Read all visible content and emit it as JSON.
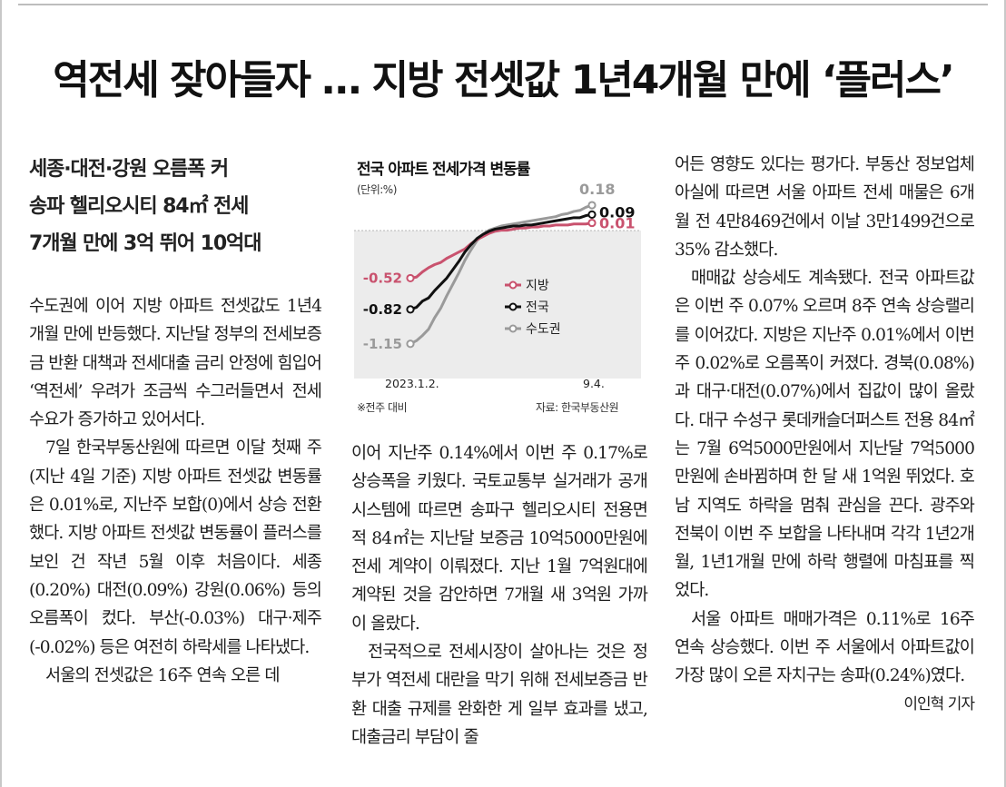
{
  "headline": "역전세 잦아들자 … 지방 전셋값 1년4개월 만에 ‘플러스’",
  "subhead": [
    "세종·대전·강원 오름폭 커",
    "송파 헬리오시티 84㎡ 전세",
    "7개월 만에 3억 뛰어 10억대"
  ],
  "col1": [
    "수도권에 이어 지방 아파트 전셋값도 1년4개월 만에 반등했다. 지난달 정부의 전세보증금 반환 대책과 전세대출 금리 안정에 힘입어 ‘역전세’ 우려가 조금씩 수그러들면서 전세 수요가 증가하고 있어서다.",
    "7일 한국부동산원에 따르면 이달 첫째 주(지난 4일 기준) 지방 아파트 전셋값 변동률은 0.01%로, 지난주 보합(0)에서 상승 전환했다. 지방 아파트 전셋값 변동률이 플러스를 보인 건 작년 5월 이후 처음이다. 세종(0.20%) 대전(0.09%) 강원(0.06%) 등의 오름폭이 컸다. 부산(-0.03%) 대구·제주(-0.02%) 등은 여전히 하락세를 나타냈다.",
    "서울의 전셋값은 16주 연속 오른 데"
  ],
  "col2": [
    "이어 지난주 0.14%에서 이번 주 0.17%로 상승폭을 키웠다. 국토교통부 실거래가 공개시스템에 따르면 송파구 헬리오시티 전용면적 84㎡는 지난달 보증금 10억5000만원에 전세 계약이 이뤄졌다. 지난 1월 7억원대에 계약된 것을 감안하면 7개월 새 3억원 가까이 올랐다.",
    "전국적으로 전세시장이 살아나는 것은 정부가 역전세 대란을 막기 위해 전세보증금 반환 대출 규제를 완화한 게 일부 효과를 냈고, 대출금리 부담이 줄"
  ],
  "col3": [
    "어든 영향도 있다는 평가다. 부동산 정보업체 아실에 따르면 서울 아파트 전세 매물은 6개월 전 4만8469건에서 이날 3만1499건으로 35% 감소했다.",
    "매매값 상승세도 계속됐다. 전국 아파트값은 이번 주 0.07% 오르며 8주 연속 상승랠리를 이어갔다. 지방은 지난주 0.01%에서 이번 주 0.02%로 오름폭이 커졌다. 경북(0.08%)과 대구·대전(0.07%)에서 집값이 많이 올랐다. 대구 수성구 롯데캐슬더퍼스트 전용 84㎡는 7월 6억5000만원에서 지난달 7억5000만원에 손바뀜하며 한 달 새 1억원 뛰었다. 호남 지역도 하락을 멈춰 관심을 끈다. 광주와 전북이 이번 주 보합을 나타내며 각각 1년2개월, 1년1개월 만에 하락 행렬에 마침표를 찍었다.",
    "서울 아파트 매매가격은 0.11%로 16주 연속 상승했다. 이번 주 서울에서 아파트값이 가장 많이 오른 자치구는 송파(0.24%)였다."
  ],
  "byline": "이인혁 기자",
  "chart_data": {
    "type": "line",
    "title": "전국 아파트 전세가격 변동률",
    "unit": "(단위:%)",
    "x_start_label": "2023.1.2.",
    "x_end_label": "9.4.",
    "note": "※전주 대비",
    "source": "자료: 한국부동산원",
    "ylim": [
      -1.3,
      0.25
    ],
    "grid": false,
    "legend_position": "center",
    "series": [
      {
        "name": "지방",
        "color": "#c9526e",
        "start_label": "-0.52",
        "end_label": "0.01",
        "values": [
          -0.52,
          -0.51,
          -0.46,
          -0.42,
          -0.39,
          -0.37,
          -0.33,
          -0.3,
          -0.27,
          -0.24,
          -0.19,
          -0.15,
          -0.12,
          -0.09,
          -0.07,
          -0.06,
          -0.06,
          -0.05,
          -0.04,
          -0.04,
          -0.03,
          -0.03,
          -0.02,
          -0.02,
          -0.01,
          -0.01,
          -0.01,
          0.0,
          0.0,
          0.0,
          0.01
        ]
      },
      {
        "name": "전국",
        "color": "#111111",
        "start_label": "-0.82",
        "end_label": "0.09",
        "values": [
          -0.82,
          -0.8,
          -0.74,
          -0.71,
          -0.64,
          -0.58,
          -0.52,
          -0.44,
          -0.36,
          -0.27,
          -0.2,
          -0.14,
          -0.1,
          -0.07,
          -0.05,
          -0.04,
          -0.03,
          -0.02,
          -0.02,
          -0.01,
          -0.01,
          0.0,
          0.01,
          0.02,
          0.03,
          0.04,
          0.05,
          0.06,
          0.06,
          0.08,
          0.09
        ]
      },
      {
        "name": "수도권",
        "color": "#9a9a9a",
        "start_label": "-1.15",
        "end_label": "0.18",
        "values": [
          -1.15,
          -1.12,
          -1.07,
          -1.01,
          -0.9,
          -0.81,
          -0.69,
          -0.58,
          -0.47,
          -0.35,
          -0.25,
          -0.16,
          -0.1,
          -0.06,
          -0.04,
          -0.02,
          -0.01,
          0.0,
          0.01,
          0.02,
          0.03,
          0.04,
          0.05,
          0.06,
          0.07,
          0.09,
          0.1,
          0.12,
          0.13,
          0.16,
          0.18
        ]
      }
    ]
  }
}
